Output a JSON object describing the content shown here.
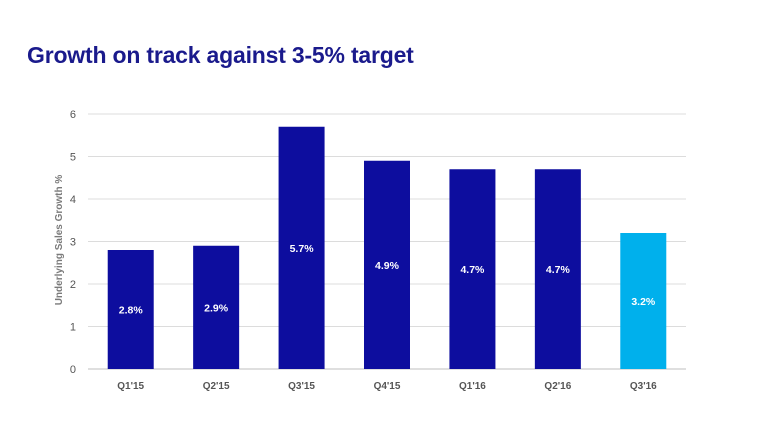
{
  "slide": {
    "title": "Growth on track against 3-5% target"
  },
  "chart_data": {
    "type": "bar",
    "title": "",
    "xlabel": "",
    "ylabel": "Underlying Sales Growth %",
    "ylim": [
      0,
      6
    ],
    "yticks": [
      0,
      1,
      2,
      3,
      4,
      5,
      6
    ],
    "grid": true,
    "categories": [
      "Q1'15",
      "Q2'15",
      "Q3'15",
      "Q4'15",
      "Q1'16",
      "Q2'16",
      "Q3'16"
    ],
    "values": [
      2.8,
      2.9,
      5.7,
      4.9,
      4.7,
      4.7,
      3.2
    ],
    "data_labels": [
      "2.8%",
      "2.9%",
      "5.7%",
      "4.9%",
      "4.7%",
      "4.7%",
      "3.2%"
    ],
    "colors": [
      "#0d0d9e",
      "#0d0d9e",
      "#0d0d9e",
      "#0d0d9e",
      "#0d0d9e",
      "#0d0d9e",
      "#00b0ec"
    ]
  }
}
